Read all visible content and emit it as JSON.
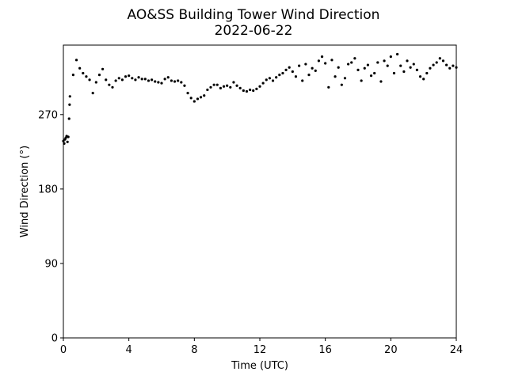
{
  "chart_data": {
    "type": "scatter",
    "title": "AO&SS Building Tower Wind Direction",
    "subtitle": "2022-06-22",
    "x_label": "Time (UTC)",
    "y_label": "Wind Direction (°)",
    "color": "#000000",
    "xlim": [
      0,
      24
    ],
    "xticks": [
      0,
      4,
      8,
      12,
      16,
      20,
      24
    ],
    "ylim": [
      0,
      354
    ],
    "yticks": [
      0,
      90,
      180,
      270
    ],
    "x": [
      0,
      0.05,
      0.1,
      0.15,
      0.2,
      0.25,
      0.3,
      0.35,
      0.38,
      0.4,
      0.6,
      0.8,
      1.0,
      1.2,
      1.4,
      1.6,
      1.8,
      2.0,
      2.2,
      2.4,
      2.6,
      2.8,
      3.0,
      3.2,
      3.4,
      3.6,
      3.8,
      4.0,
      4.2,
      4.4,
      4.6,
      4.8,
      5.0,
      5.2,
      5.4,
      5.6,
      5.8,
      6.0,
      6.2,
      6.4,
      6.6,
      6.8,
      7.0,
      7.2,
      7.4,
      7.6,
      7.8,
      8.0,
      8.2,
      8.4,
      8.6,
      8.8,
      9.0,
      9.2,
      9.4,
      9.6,
      9.8,
      10.0,
      10.2,
      10.4,
      10.6,
      10.8,
      11.0,
      11.2,
      11.4,
      11.6,
      11.8,
      12.0,
      12.2,
      12.4,
      12.6,
      12.8,
      13.0,
      13.2,
      13.4,
      13.6,
      13.8,
      14.0,
      14.2,
      14.4,
      14.6,
      14.8,
      15.0,
      15.2,
      15.4,
      15.6,
      15.8,
      16.0,
      16.2,
      16.4,
      16.6,
      16.8,
      17.0,
      17.2,
      17.4,
      17.6,
      17.8,
      18.0,
      18.2,
      18.4,
      18.6,
      18.8,
      19.0,
      19.2,
      19.4,
      19.6,
      19.8,
      20.0,
      20.2,
      20.4,
      20.6,
      20.8,
      21.0,
      21.2,
      21.4,
      21.6,
      21.8,
      22.0,
      22.2,
      22.4,
      22.6,
      22.8,
      23.0,
      23.2,
      23.4,
      23.6,
      23.8,
      24.0
    ],
    "y": [
      238,
      235,
      240,
      242,
      244,
      237,
      243,
      265,
      282,
      292,
      318,
      336,
      326,
      320,
      316,
      312,
      296,
      309,
      318,
      325,
      312,
      306,
      303,
      311,
      314,
      312,
      316,
      317,
      314,
      312,
      315,
      313,
      313,
      311,
      312,
      310,
      309,
      308,
      313,
      315,
      311,
      310,
      311,
      309,
      305,
      296,
      290,
      286,
      289,
      291,
      293,
      300,
      303,
      306,
      306,
      302,
      304,
      305,
      303,
      309,
      305,
      302,
      299,
      298,
      300,
      299,
      301,
      304,
      308,
      312,
      314,
      311,
      315,
      318,
      320,
      324,
      327,
      322,
      316,
      329,
      311,
      331,
      318,
      326,
      323,
      335,
      340,
      332,
      303,
      336,
      316,
      327,
      306,
      314,
      331,
      333,
      338,
      324,
      311,
      326,
      330,
      317,
      320,
      333,
      310,
      335,
      329,
      340,
      320,
      343,
      329,
      322,
      335,
      327,
      331,
      324,
      316,
      313,
      320,
      326,
      330,
      333,
      338,
      335,
      330,
      326,
      329,
      327
    ]
  }
}
